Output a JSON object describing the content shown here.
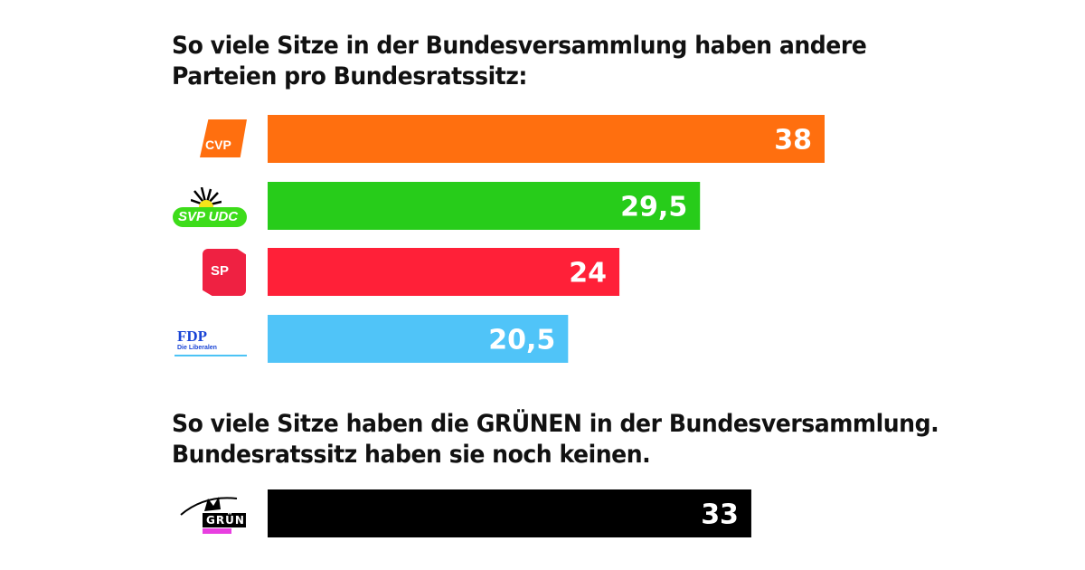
{
  "titles": {
    "top": [
      "So viele Sitze in der Bundesversammlung haben andere",
      "Parteien pro Bundesratssitz:"
    ],
    "bottom": [
      "So viele Sitze haben die GRÜNEN in der Bundesversammlung.",
      "Bundesratssitz haben sie noch keinen."
    ]
  },
  "logos": {
    "cvp": "CVP",
    "svp": "SVP UDC",
    "sp": "SP",
    "fdp": "FDP",
    "fdp_sub": "Die Liberalen",
    "gruene": "GRÜNE"
  },
  "chart_data": {
    "type": "bar",
    "orientation": "horizontal",
    "categories": [
      "CVP",
      "SVP UDC",
      "SP",
      "FDP",
      "GRÜNE"
    ],
    "values": [
      38,
      29.5,
      24,
      20.5,
      33
    ],
    "labels": [
      "38",
      "29,5",
      "24",
      "20,5",
      "33"
    ],
    "colors": [
      "#ff6f0f",
      "#27cc1a",
      "#ff2038",
      "#50c4f8",
      "#000000"
    ],
    "xlim": [
      0,
      38
    ],
    "grid": false,
    "legend": "none"
  }
}
